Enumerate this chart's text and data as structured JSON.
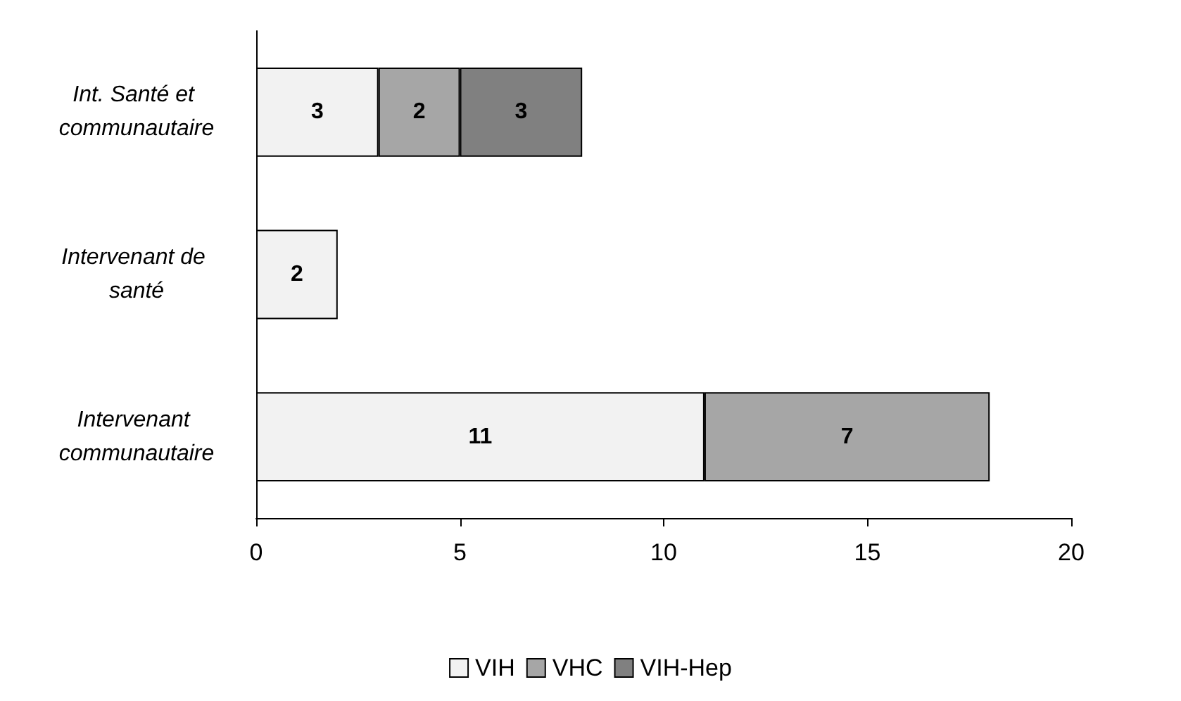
{
  "chart_data": {
    "type": "bar",
    "orientation": "horizontal",
    "stacked": true,
    "categories": [
      "Int. Santé et communautaire",
      "Intervenant de santé",
      "Intervenant communautaire"
    ],
    "series": [
      {
        "name": "VIH",
        "color": "#f2f2f2",
        "values": [
          3,
          2,
          11
        ]
      },
      {
        "name": "VHC",
        "color": "#a6a6a6",
        "values": [
          2,
          null,
          7
        ]
      },
      {
        "name": "VIH-Hep",
        "color": "#808080",
        "values": [
          3,
          null,
          null
        ]
      }
    ],
    "xlim": [
      0,
      20
    ],
    "xticks": [
      0,
      5,
      10,
      15,
      20
    ],
    "data_labels": true,
    "legend": "bottom",
    "grid": false
  }
}
